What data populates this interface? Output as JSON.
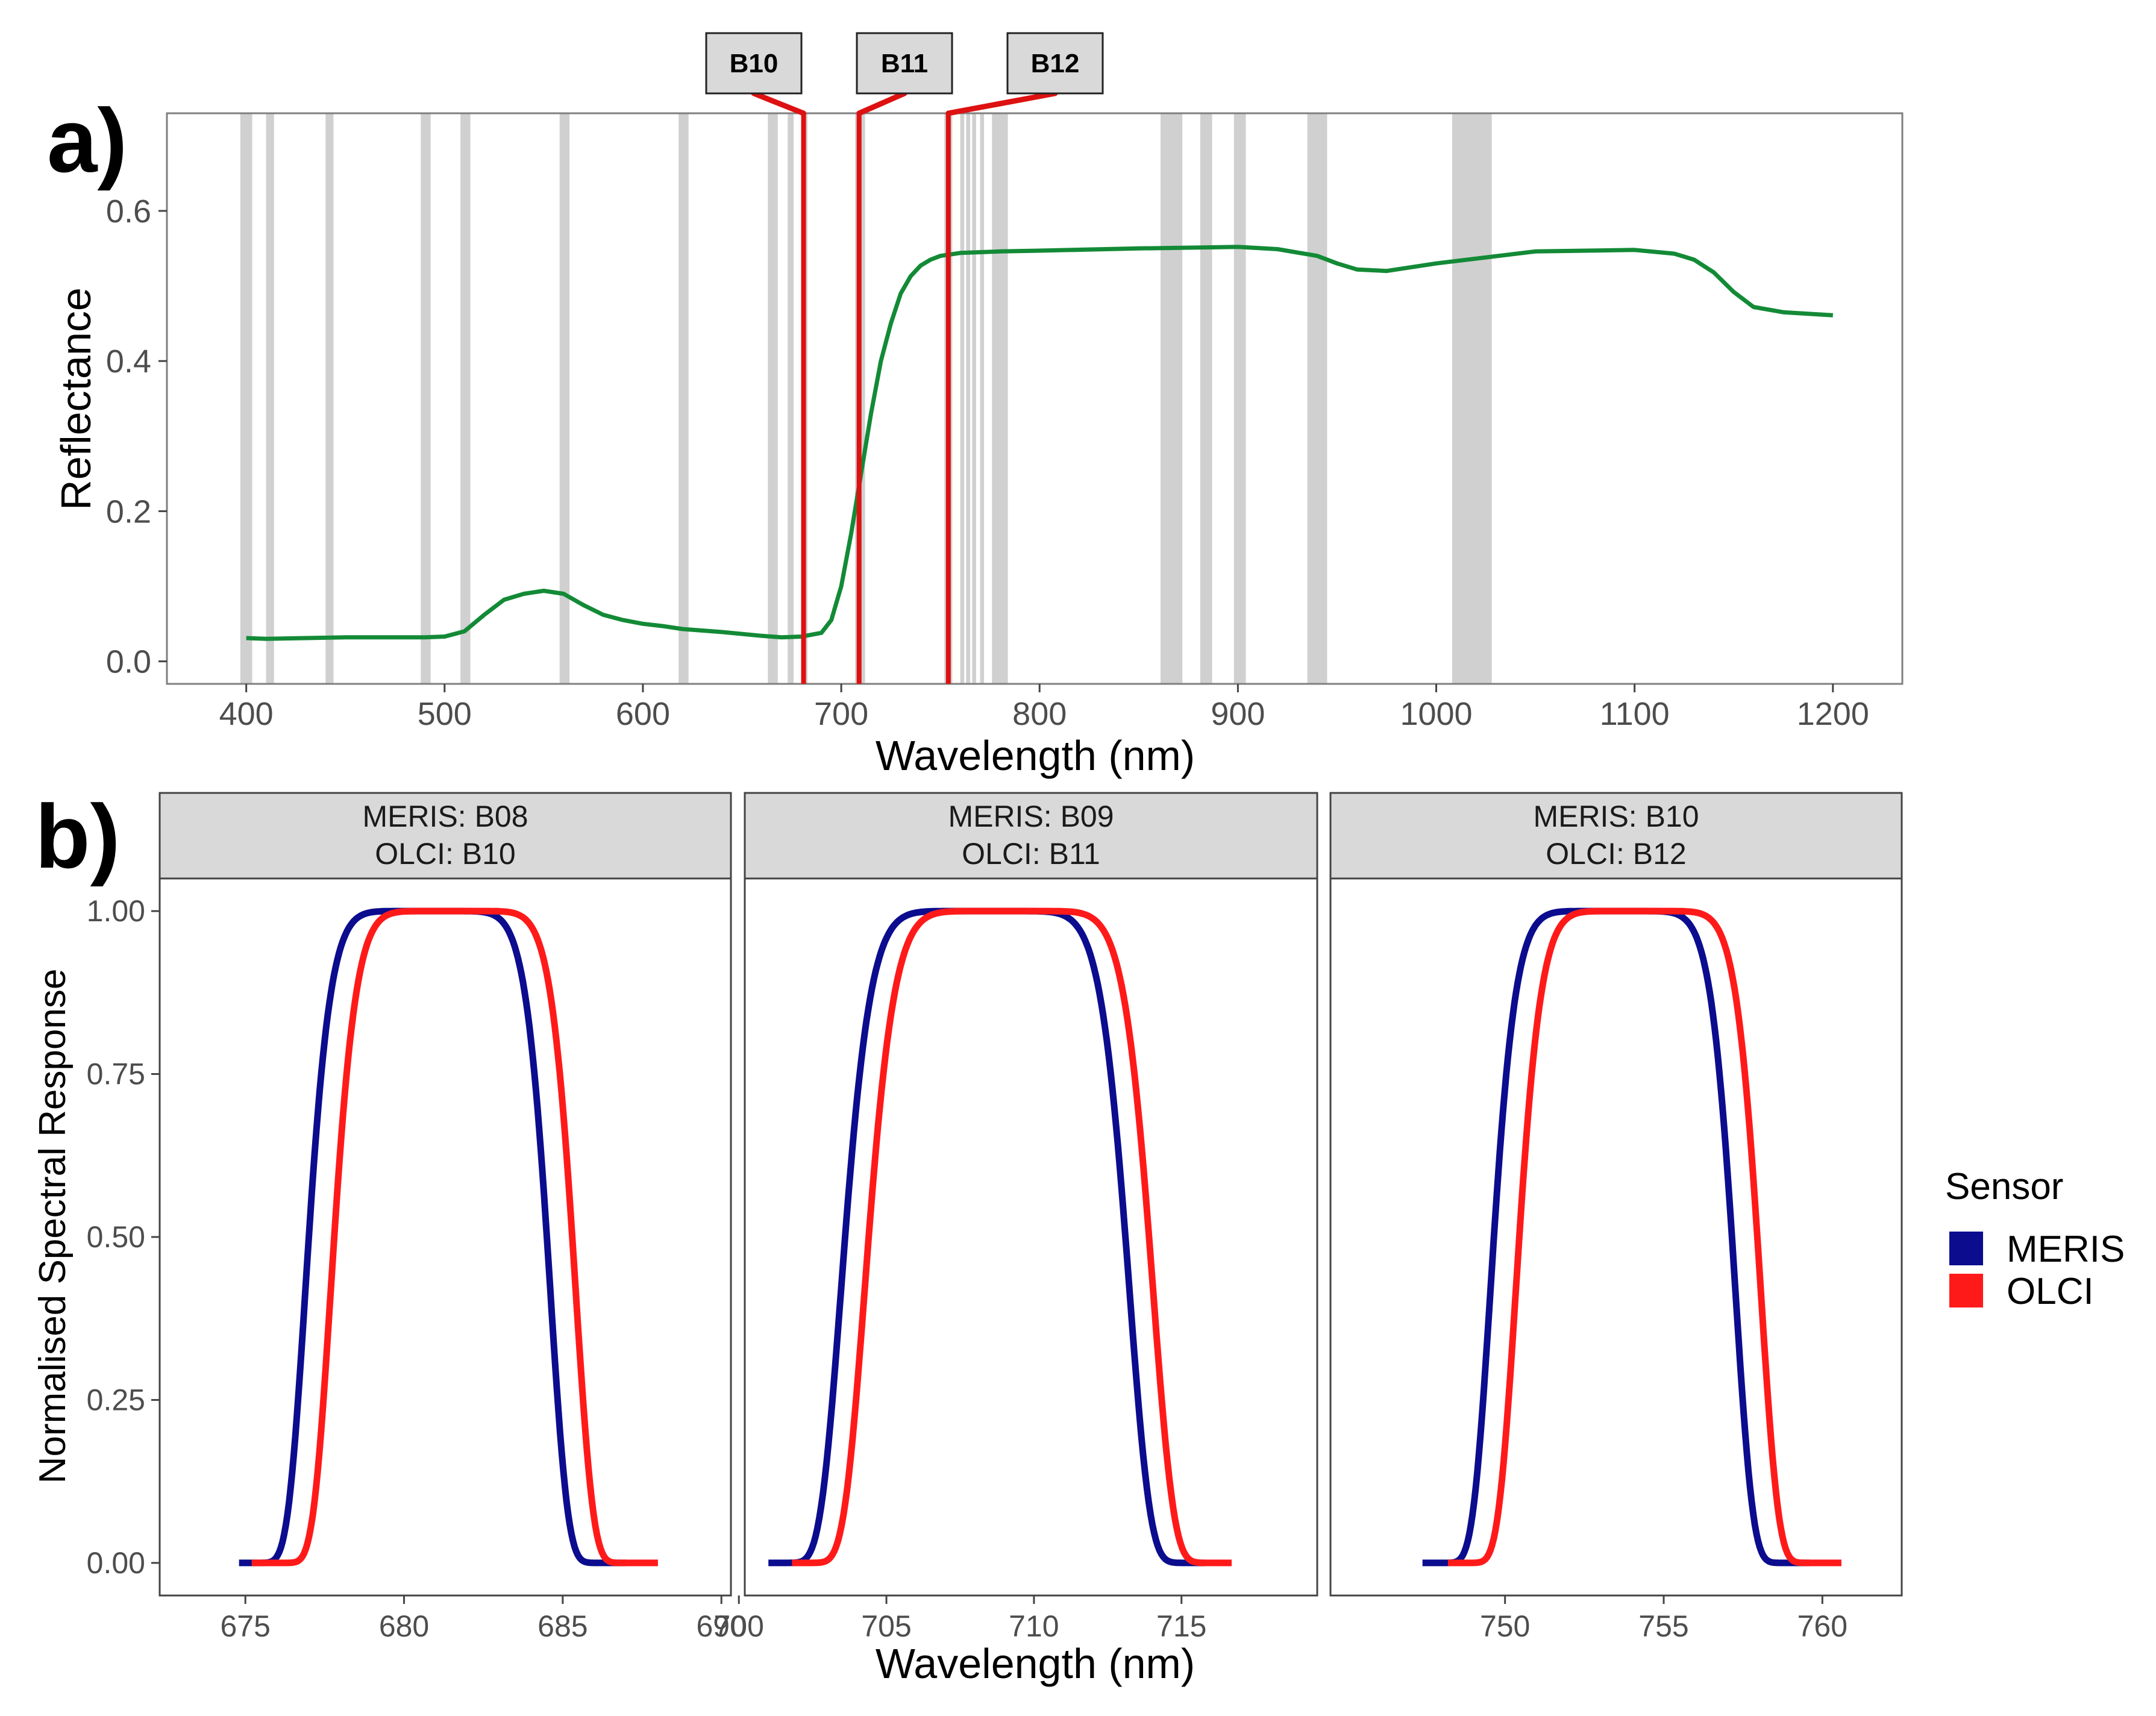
{
  "panel_a": {
    "label": "a)",
    "chart_data": {
      "type": "line",
      "title": "",
      "xlabel": "Wavelength (nm)",
      "ylabel": "Reflectance",
      "xlim": [
        360,
        1235
      ],
      "ylim": [
        -0.03,
        0.73
      ],
      "xticks": [
        400,
        500,
        600,
        700,
        800,
        900,
        1000,
        1100,
        1200
      ],
      "yticks": [
        0.0,
        0.2,
        0.4,
        0.6
      ],
      "ytick_labels": [
        "0.0",
        "0.2",
        "0.4",
        "0.6"
      ],
      "series": [
        {
          "name": "Reflectance",
          "color": "#138a36",
          "x": [
            400,
            410,
            430,
            450,
            470,
            490,
            500,
            510,
            520,
            530,
            540,
            550,
            560,
            570,
            580,
            590,
            600,
            610,
            620,
            640,
            660,
            670,
            680,
            690,
            695,
            700,
            705,
            710,
            715,
            720,
            725,
            730,
            735,
            740,
            745,
            750,
            760,
            780,
            800,
            850,
            900,
            920,
            940,
            950,
            960,
            975,
            1000,
            1050,
            1100,
            1120,
            1130,
            1140,
            1150,
            1160,
            1175,
            1200
          ],
          "y": [
            0.031,
            0.03,
            0.031,
            0.032,
            0.032,
            0.032,
            0.033,
            0.04,
            0.062,
            0.082,
            0.09,
            0.094,
            0.09,
            0.075,
            0.062,
            0.055,
            0.05,
            0.047,
            0.043,
            0.039,
            0.034,
            0.032,
            0.033,
            0.038,
            0.055,
            0.1,
            0.17,
            0.25,
            0.33,
            0.4,
            0.45,
            0.49,
            0.513,
            0.527,
            0.535,
            0.54,
            0.544,
            0.546,
            0.547,
            0.55,
            0.552,
            0.549,
            0.54,
            0.53,
            0.522,
            0.52,
            0.53,
            0.546,
            0.548,
            0.543,
            0.535,
            0.518,
            0.492,
            0.472,
            0.465,
            0.461
          ]
        }
      ],
      "band_bars": [
        [
          397,
          403
        ],
        [
          410,
          414
        ],
        [
          440,
          444
        ],
        [
          488,
          493
        ],
        [
          508,
          513
        ],
        [
          558,
          563
        ],
        [
          618,
          623
        ],
        [
          663,
          668
        ],
        [
          673,
          676
        ],
        [
          680,
          683
        ],
        [
          707,
          712
        ],
        [
          752,
          756
        ],
        [
          760,
          762
        ],
        [
          763,
          765
        ],
        [
          766,
          768
        ],
        [
          770,
          772
        ],
        [
          776,
          784
        ],
        [
          861,
          872
        ],
        [
          881,
          887
        ],
        [
          898,
          904
        ],
        [
          935,
          945
        ],
        [
          1008,
          1028
        ]
      ],
      "highlighted_bands": [
        {
          "label": "B10",
          "x": 681
        },
        {
          "label": "B11",
          "x": 709
        },
        {
          "label": "B12",
          "x": 754
        }
      ],
      "colors": {
        "band_bar": "#d0d0d0",
        "highlight": "#dd1111"
      }
    }
  },
  "panel_b": {
    "label": "b)",
    "ylabel": "Normalised Spectral Response",
    "xlabel": "Wavelength (nm)",
    "yticks": [
      0,
      0.25,
      0.5,
      0.75,
      1.0
    ],
    "ytick_labels": [
      "0.00",
      "0.25",
      "0.50",
      "0.75",
      "1.00"
    ],
    "legend": {
      "title": "Sensor",
      "items": [
        {
          "name": "MERIS",
          "color": "#0c0c8f"
        },
        {
          "name": "OLCI",
          "color": "#ff1a1a"
        }
      ]
    },
    "chart_data": [
      {
        "type": "line",
        "strip": [
          "MERIS: B08",
          "OLCI: B10"
        ],
        "xlim": [
          672.3,
          690.3
        ],
        "xticks": [
          675,
          680,
          685,
          690
        ],
        "xtick_labels": [
          "675",
          "680",
          "685",
          "690"
        ],
        "ylim": [
          -0.05,
          1.05
        ],
        "series": [
          {
            "name": "MERIS",
            "center": 680.75,
            "half_width": 3.75,
            "x_range": [
              674.8,
              687.0
            ]
          },
          {
            "name": "OLCI",
            "center": 681.55,
            "half_width": 3.75,
            "x_range": [
              675.2,
              688.0
            ]
          }
        ]
      },
      {
        "type": "line",
        "strip": [
          "MERIS: B09",
          "OLCI: B11"
        ],
        "xlim": [
          700.2,
          719.6
        ],
        "xticks": [
          700,
          705,
          710,
          715
        ],
        "xtick_labels": [
          "700",
          "705",
          "710",
          "715"
        ],
        "ylim": [
          -0.05,
          1.05
        ],
        "series": [
          {
            "name": "MERIS",
            "center": 708.35,
            "half_width": 4.75,
            "x_range": [
              701.0,
              715.8
            ]
          },
          {
            "name": "OLCI",
            "center": 709.15,
            "half_width": 4.75,
            "x_range": [
              701.8,
              716.7
            ]
          }
        ]
      },
      {
        "type": "line",
        "strip": [
          "MERIS: B10",
          "OLCI: B12"
        ],
        "xlim": [
          744.5,
          762.5
        ],
        "xticks": [
          750,
          755,
          760
        ],
        "xtick_labels": [
          "750",
          "755",
          "760"
        ],
        "ylim": [
          -0.05,
          1.05
        ],
        "series": [
          {
            "name": "MERIS",
            "center": 753.4,
            "half_width": 3.75,
            "x_range": [
              747.4,
              759.6
            ]
          },
          {
            "name": "OLCI",
            "center": 754.2,
            "half_width": 3.75,
            "x_range": [
              748.2,
              760.6
            ]
          }
        ]
      }
    ]
  }
}
